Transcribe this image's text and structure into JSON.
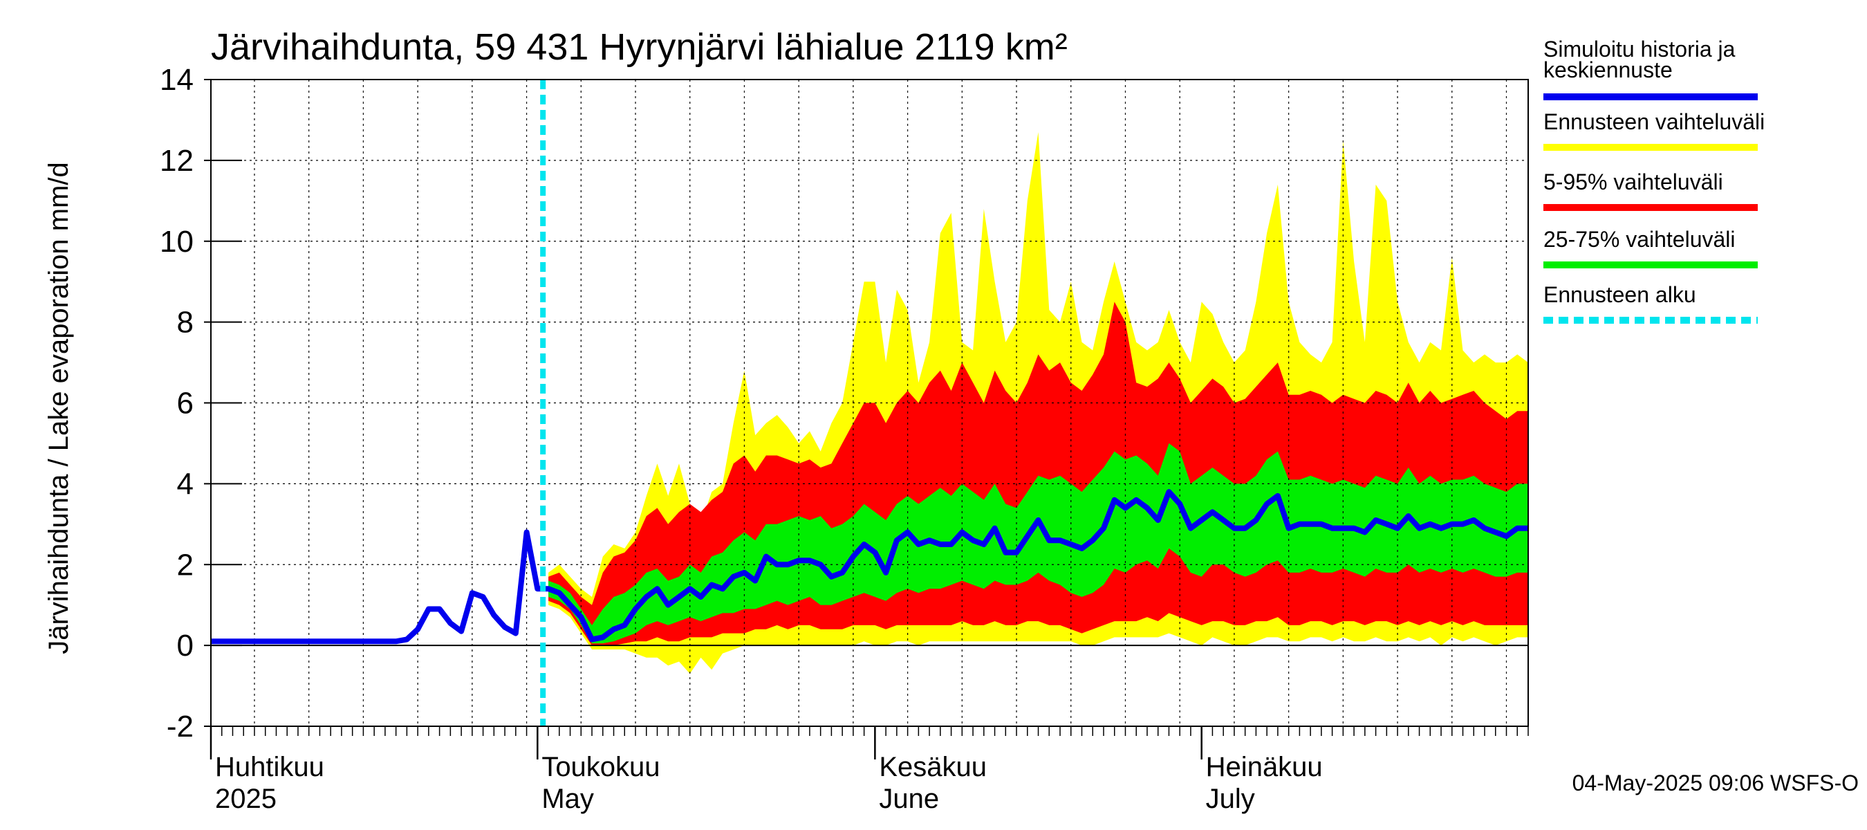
{
  "chart_data": {
    "type": "area",
    "title": "Järvihaihdunta, 59 431 Hyrynjärvi lähialue 2119 km²",
    "ylabel": "Järvihaihdunta / Lake evaporation   mm/d",
    "ylim": [
      -2,
      14
    ],
    "yticks": [
      "-2",
      "0",
      "2",
      "4",
      "6",
      "8",
      "10",
      "12",
      "14"
    ],
    "ytick_values": [
      -2,
      0,
      2,
      4,
      6,
      8,
      10,
      12,
      14
    ],
    "x_range_days": [
      0,
      121
    ],
    "months": [
      {
        "line1": "Huhtikuu",
        "line2": "2025",
        "day": 0
      },
      {
        "line1": "Toukokuu",
        "line2": "May",
        "day": 30
      },
      {
        "line1": "Kesäkuu",
        "line2": "June",
        "day": 61
      },
      {
        "line1": "Heinäkuu",
        "line2": "July",
        "day": 91
      }
    ],
    "forecast_start_day": 30.5,
    "history": {
      "name": "Simuloitu historia ja keskiennuste",
      "x": [
        0,
        1,
        2,
        3,
        4,
        5,
        6,
        7,
        8,
        9,
        10,
        11,
        12,
        13,
        14,
        15,
        16,
        17,
        18,
        19,
        20,
        21,
        22,
        23,
        24,
        25,
        26,
        27,
        28,
        29,
        30
      ],
      "values": [
        0.1,
        0.1,
        0.1,
        0.1,
        0.1,
        0.1,
        0.1,
        0.1,
        0.1,
        0.1,
        0.1,
        0.1,
        0.1,
        0.1,
        0.1,
        0.1,
        0.1,
        0.1,
        0.15,
        0.4,
        0.9,
        0.9,
        0.55,
        0.35,
        1.3,
        1.2,
        0.75,
        0.45,
        0.3,
        2.8,
        1.4
      ]
    },
    "forecast_x": [
      31,
      32,
      33,
      34,
      35,
      36,
      37,
      38,
      39,
      40,
      41,
      42,
      43,
      44,
      45,
      46,
      47,
      48,
      49,
      50,
      51,
      52,
      53,
      54,
      55,
      56,
      57,
      58,
      59,
      60,
      61,
      62,
      63,
      64,
      65,
      66,
      67,
      68,
      69,
      70,
      71,
      72,
      73,
      74,
      75,
      76,
      77,
      78,
      79,
      80,
      81,
      82,
      83,
      84,
      85,
      86,
      87,
      88,
      89,
      90,
      91,
      92,
      93,
      94,
      95,
      96,
      97,
      98,
      99,
      100,
      101,
      102,
      103,
      104,
      105,
      106,
      107,
      108,
      109,
      110,
      111,
      112,
      113,
      114,
      115,
      116,
      117,
      118,
      119,
      120,
      121
    ],
    "median": [
      1.4,
      1.3,
      1.0,
      0.7,
      0.15,
      0.2,
      0.4,
      0.5,
      0.9,
      1.2,
      1.4,
      1.0,
      1.2,
      1.4,
      1.2,
      1.5,
      1.4,
      1.7,
      1.8,
      1.6,
      2.2,
      2.0,
      2.0,
      2.1,
      2.1,
      2.0,
      1.7,
      1.8,
      2.2,
      2.5,
      2.3,
      1.8,
      2.6,
      2.8,
      2.5,
      2.6,
      2.5,
      2.5,
      2.8,
      2.6,
      2.5,
      2.9,
      2.3,
      2.3,
      2.7,
      3.1,
      2.6,
      2.6,
      2.5,
      2.4,
      2.6,
      2.9,
      3.6,
      3.4,
      3.6,
      3.4,
      3.1,
      3.8,
      3.5,
      2.9,
      3.1,
      3.3,
      3.1,
      2.9,
      2.9,
      3.1,
      3.5,
      3.7,
      2.9,
      3.0,
      3.0,
      3.0,
      2.9,
      2.9,
      2.9,
      2.8,
      3.1,
      3.0,
      2.9,
      3.2,
      2.9,
      3.0,
      2.9,
      3.0,
      3.0,
      3.1,
      2.9,
      2.8,
      2.7,
      2.9,
      2.9
    ],
    "p25": [
      1.2,
      1.1,
      0.9,
      0.5,
      0.05,
      0.05,
      0.1,
      0.2,
      0.3,
      0.5,
      0.6,
      0.5,
      0.6,
      0.7,
      0.6,
      0.7,
      0.8,
      0.8,
      0.9,
      0.9,
      1.0,
      1.1,
      1.0,
      1.1,
      1.2,
      1.0,
      1.0,
      1.1,
      1.2,
      1.3,
      1.2,
      1.1,
      1.3,
      1.4,
      1.3,
      1.4,
      1.4,
      1.5,
      1.6,
      1.5,
      1.4,
      1.6,
      1.5,
      1.5,
      1.6,
      1.8,
      1.6,
      1.5,
      1.3,
      1.2,
      1.3,
      1.5,
      1.9,
      1.8,
      2.0,
      2.1,
      1.9,
      2.4,
      2.2,
      1.8,
      1.7,
      2.0,
      2.0,
      1.8,
      1.7,
      1.8,
      2.0,
      2.1,
      1.8,
      1.8,
      1.9,
      1.8,
      1.8,
      1.9,
      1.8,
      1.7,
      1.9,
      1.8,
      1.8,
      2.0,
      1.8,
      1.9,
      1.8,
      1.9,
      1.8,
      1.9,
      1.8,
      1.7,
      1.7,
      1.8,
      1.8
    ],
    "p75": [
      1.6,
      1.5,
      1.3,
      0.9,
      0.5,
      0.9,
      1.2,
      1.3,
      1.5,
      1.8,
      1.9,
      1.6,
      1.7,
      2.0,
      1.8,
      2.2,
      2.3,
      2.6,
      2.8,
      2.6,
      3.0,
      3.0,
      3.1,
      3.2,
      3.1,
      3.2,
      2.9,
      3.0,
      3.2,
      3.5,
      3.3,
      3.1,
      3.5,
      3.7,
      3.5,
      3.7,
      3.9,
      3.7,
      4.0,
      3.8,
      3.6,
      4.0,
      3.5,
      3.4,
      3.8,
      4.2,
      4.1,
      4.2,
      4.0,
      3.8,
      4.1,
      4.4,
      4.8,
      4.6,
      4.7,
      4.5,
      4.2,
      5.0,
      4.8,
      4.0,
      4.2,
      4.4,
      4.2,
      4.0,
      4.0,
      4.2,
      4.6,
      4.8,
      4.1,
      4.1,
      4.2,
      4.1,
      4.0,
      4.1,
      4.0,
      3.9,
      4.2,
      4.1,
      4.0,
      4.4,
      4.0,
      4.2,
      4.0,
      4.1,
      4.1,
      4.2,
      4.0,
      3.9,
      3.8,
      4.0,
      4.0
    ],
    "p05": [
      1.1,
      1.0,
      0.8,
      0.4,
      0.0,
      0.0,
      0.0,
      0.05,
      0.1,
      0.1,
      0.2,
      0.1,
      0.1,
      0.2,
      0.2,
      0.2,
      0.3,
      0.3,
      0.3,
      0.4,
      0.4,
      0.5,
      0.4,
      0.5,
      0.5,
      0.4,
      0.4,
      0.4,
      0.5,
      0.5,
      0.5,
      0.4,
      0.5,
      0.5,
      0.5,
      0.5,
      0.5,
      0.5,
      0.6,
      0.5,
      0.5,
      0.6,
      0.5,
      0.5,
      0.6,
      0.6,
      0.5,
      0.5,
      0.4,
      0.3,
      0.4,
      0.5,
      0.6,
      0.6,
      0.6,
      0.7,
      0.6,
      0.8,
      0.7,
      0.6,
      0.5,
      0.6,
      0.6,
      0.5,
      0.5,
      0.6,
      0.6,
      0.7,
      0.5,
      0.5,
      0.6,
      0.6,
      0.5,
      0.6,
      0.6,
      0.5,
      0.6,
      0.6,
      0.5,
      0.6,
      0.5,
      0.6,
      0.5,
      0.6,
      0.5,
      0.6,
      0.5,
      0.5,
      0.5,
      0.5,
      0.5
    ],
    "p95": [
      1.7,
      1.8,
      1.5,
      1.2,
      1.0,
      1.8,
      2.2,
      2.3,
      2.6,
      3.2,
      3.4,
      3.0,
      3.3,
      3.5,
      3.3,
      3.6,
      3.8,
      4.5,
      4.7,
      4.3,
      4.7,
      4.7,
      4.6,
      4.5,
      4.6,
      4.4,
      4.5,
      5.0,
      5.5,
      6.0,
      6.0,
      5.5,
      6.0,
      6.3,
      6.0,
      6.5,
      6.8,
      6.3,
      7.0,
      6.5,
      6.0,
      6.8,
      6.3,
      6.0,
      6.5,
      7.2,
      6.8,
      7.0,
      6.5,
      6.3,
      6.7,
      7.2,
      8.5,
      8.0,
      6.5,
      6.4,
      6.6,
      7.0,
      6.6,
      6.0,
      6.3,
      6.6,
      6.4,
      6.0,
      6.1,
      6.4,
      6.7,
      7.0,
      6.2,
      6.2,
      6.3,
      6.2,
      6.0,
      6.2,
      6.1,
      6.0,
      6.3,
      6.2,
      6.0,
      6.5,
      6.0,
      6.3,
      6.0,
      6.1,
      6.2,
      6.3,
      6.0,
      5.8,
      5.6,
      5.8,
      5.8
    ],
    "min": [
      1.0,
      0.9,
      0.7,
      0.3,
      -0.1,
      -0.1,
      -0.1,
      -0.1,
      -0.2,
      -0.3,
      -0.3,
      -0.5,
      -0.4,
      -0.7,
      -0.3,
      -0.6,
      -0.2,
      -0.1,
      0.0,
      0.0,
      0.0,
      0.0,
      0.0,
      0.0,
      0.0,
      0.0,
      0.0,
      0.0,
      0.0,
      0.1,
      0.0,
      0.0,
      0.1,
      0.1,
      0.0,
      0.1,
      0.1,
      0.1,
      0.1,
      0.1,
      0.1,
      0.1,
      0.1,
      0.1,
      0.1,
      0.1,
      0.1,
      0.1,
      0.1,
      0.0,
      0.0,
      0.1,
      0.2,
      0.2,
      0.2,
      0.2,
      0.2,
      0.3,
      0.2,
      0.1,
      0.0,
      0.2,
      0.1,
      0.0,
      0.0,
      0.1,
      0.2,
      0.2,
      0.1,
      0.1,
      0.2,
      0.2,
      0.1,
      0.2,
      0.1,
      0.1,
      0.2,
      0.1,
      0.1,
      0.2,
      0.1,
      0.2,
      0.0,
      0.2,
      0.1,
      0.2,
      0.1,
      0.0,
      0.1,
      0.2,
      0.2
    ],
    "max": [
      1.8,
      2.0,
      1.7,
      1.4,
      1.2,
      2.2,
      2.5,
      2.4,
      2.8,
      3.7,
      4.5,
      3.7,
      4.5,
      3.5,
      3.0,
      3.8,
      4.0,
      5.5,
      6.8,
      5.2,
      5.5,
      5.7,
      5.4,
      5.0,
      5.3,
      4.8,
      5.5,
      6.0,
      7.5,
      9.0,
      9.0,
      7.0,
      8.8,
      8.3,
      6.5,
      7.5,
      10.2,
      10.7,
      7.5,
      7.3,
      10.8,
      9.0,
      7.5,
      8.0,
      11.0,
      12.7,
      8.3,
      8.0,
      9.0,
      7.5,
      7.3,
      8.5,
      9.5,
      8.5,
      7.5,
      7.3,
      7.5,
      8.3,
      7.5,
      7.0,
      8.5,
      8.2,
      7.5,
      7.0,
      7.3,
      8.5,
      10.2,
      11.4,
      8.5,
      7.5,
      7.2,
      7.0,
      7.5,
      12.5,
      9.5,
      7.5,
      11.4,
      11.0,
      8.5,
      7.5,
      7.0,
      7.5,
      7.3,
      9.6,
      7.3,
      7.0,
      7.2,
      7.0,
      7.0,
      7.2,
      7.0
    ]
  },
  "legend": {
    "items": [
      {
        "label_line1": "Simuloitu historia ja",
        "label_line2": "keskiennuste",
        "color": "#0000ee",
        "style": "solid"
      },
      {
        "label_line1": "Ennusteen vaihteluväli",
        "label_line2": "",
        "color": "#ffff00",
        "style": "solid"
      },
      {
        "label_line1": "5-95% vaihteluväli",
        "label_line2": "",
        "color": "#ff0000",
        "style": "solid"
      },
      {
        "label_line1": "25-75% vaihteluväli",
        "label_line2": "",
        "color": "#00ee00",
        "style": "solid"
      },
      {
        "label_line1": "Ennusteen alku",
        "label_line2": "",
        "color": "#00e5ee",
        "style": "dotted"
      }
    ]
  },
  "colors": {
    "range": "#ffff00",
    "p5_95": "#ff0000",
    "p25_75": "#00ee00",
    "median": "#0000ee",
    "forecast_start": "#00e5ee",
    "grid": "#000000"
  },
  "timestamp": "04-May-2025 09:06 WSFS-O"
}
